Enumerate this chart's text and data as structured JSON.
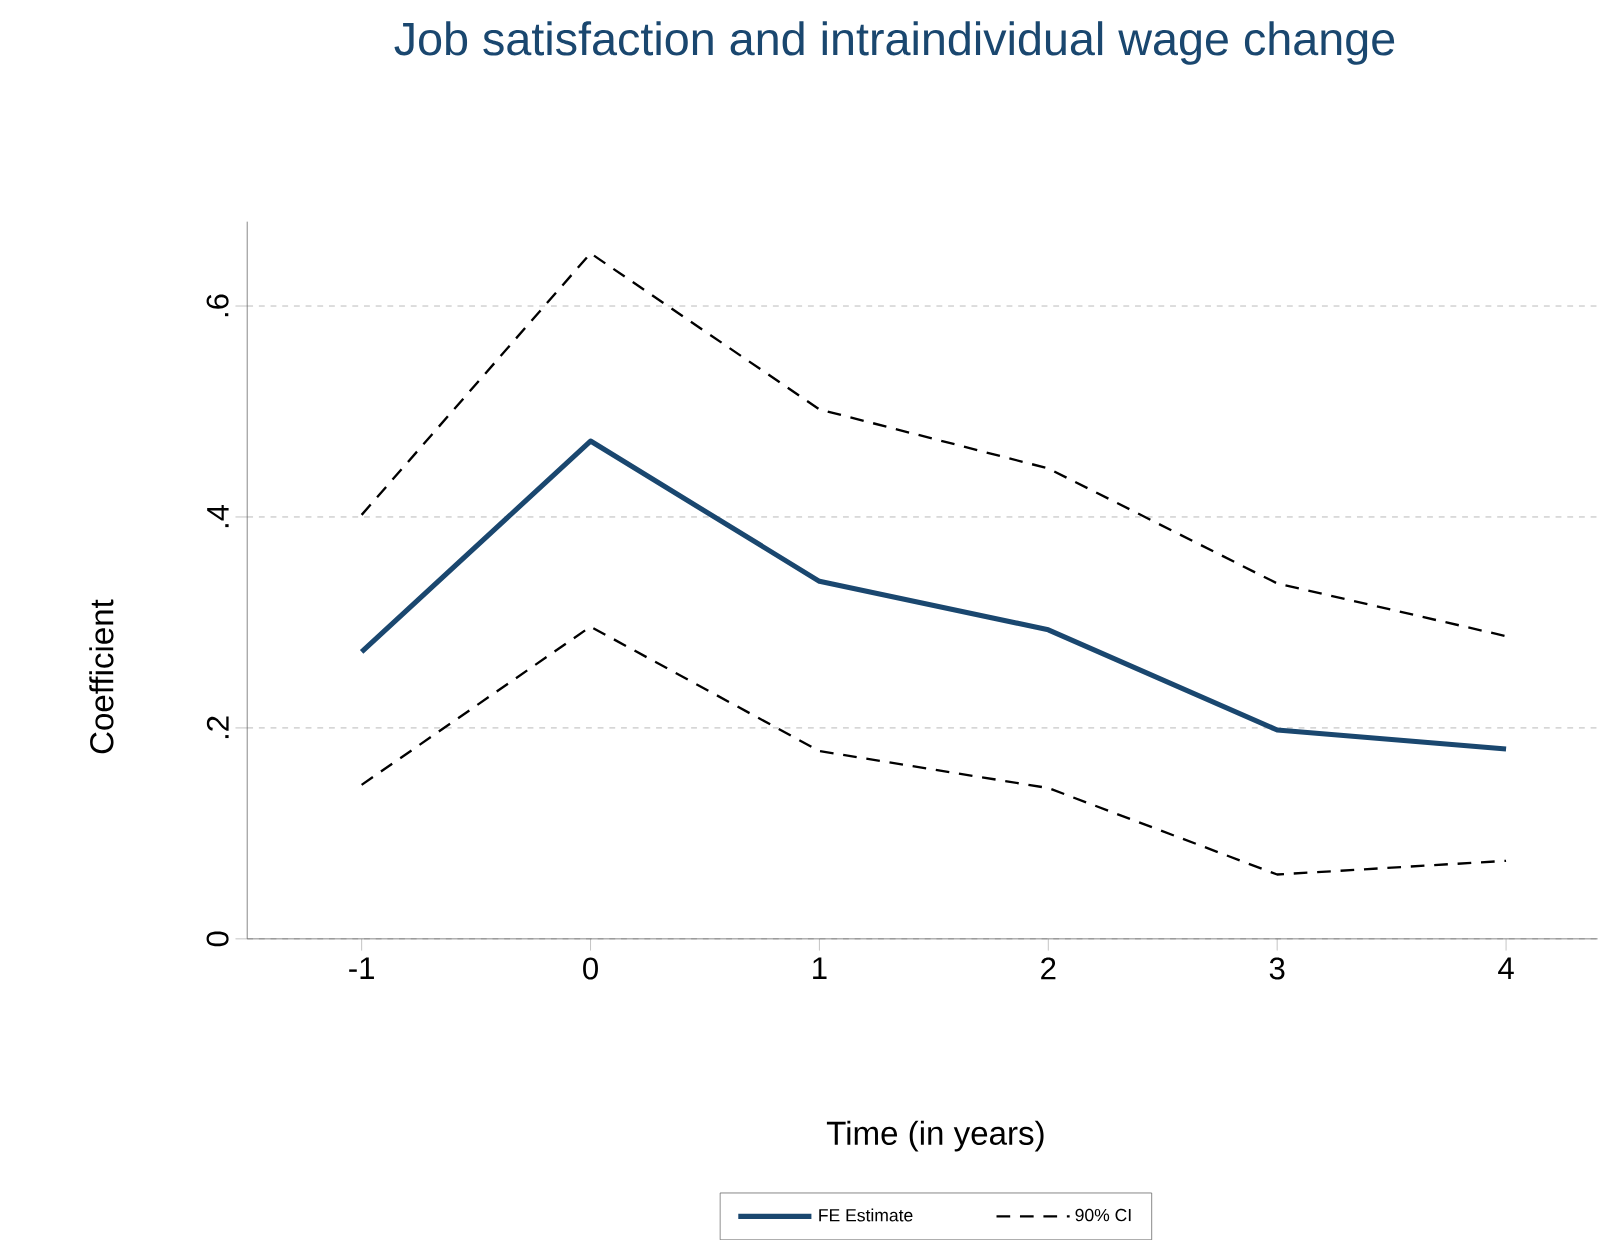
{
  "chart_data": {
    "type": "line",
    "title": "Job satisfaction and intraindividual wage change",
    "xlabel": "Time (in years)",
    "ylabel": "Coefficient",
    "x": [
      -1,
      0,
      1,
      2,
      3,
      4
    ],
    "series": [
      {
        "name": "FE Estimate",
        "color": "#1a476f",
        "line_style": "solid",
        "values": [
          0.272,
          0.472,
          0.339,
          0.293,
          0.198,
          0.18
        ]
      },
      {
        "name": "90% CI",
        "color": "#000000",
        "line_style": "dashed",
        "values": [
          0.402,
          0.65,
          0.502,
          0.446,
          0.337,
          0.287
        ]
      },
      {
        "color": "#000000",
        "line_style": "dashed",
        "values": [
          0.146,
          0.296,
          0.178,
          0.143,
          0.061,
          0.074
        ]
      }
    ],
    "xlim": [
      -1.5,
      4.4
    ],
    "ylim": [
      0,
      0.68
    ],
    "xticks": [
      -1,
      0,
      1,
      2,
      3,
      4
    ],
    "yticks": [
      {
        "value": 0,
        "label": "0"
      },
      {
        "value": 0.2,
        "label": ".2"
      },
      {
        "value": 0.4,
        "label": ".4"
      },
      {
        "value": 0.6,
        "label": ".6"
      }
    ],
    "grid": "y",
    "legend": "bottom",
    "marker": "none"
  }
}
